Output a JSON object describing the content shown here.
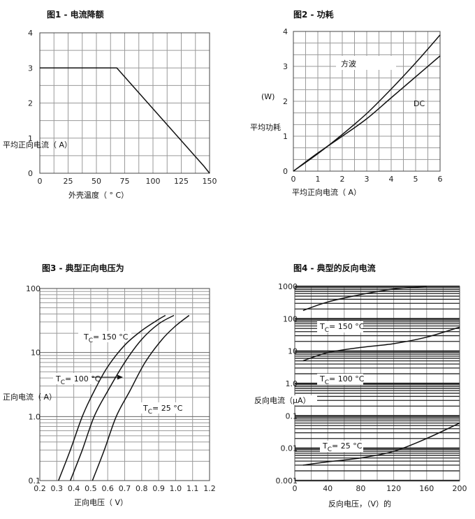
{
  "chart_data": [
    {
      "id": "fig1",
      "type": "line",
      "title": "图1 - 电流降额",
      "xlabel": "外壳温度（ ° C）",
      "ylabel": "平均正向电流（ A）",
      "xlim": [
        0,
        150
      ],
      "ylim": [
        0,
        4
      ],
      "xticks": [
        "0",
        "25",
        "50",
        "75",
        "100",
        "125",
        "150"
      ],
      "yticks": [
        "0",
        "1",
        "2",
        "3",
        "4"
      ],
      "grid": true,
      "series": [
        {
          "x": [
            0,
            68,
            145,
            150
          ],
          "y": [
            3,
            3,
            0.2,
            0
          ]
        }
      ]
    },
    {
      "id": "fig2",
      "type": "line",
      "title": "图2 - 功耗",
      "xlabel": "平均正向电流（ A）",
      "ylabel": "平均功耗",
      "ylabel_unit": "(W)",
      "xlim": [
        0,
        6
      ],
      "ylim": [
        0,
        4
      ],
      "xticks": [
        "0",
        "1",
        "2",
        "3",
        "4",
        "5",
        "6"
      ],
      "yticks": [
        "0",
        "1",
        "2",
        "3",
        "4"
      ],
      "grid": true,
      "series": [
        {
          "name": "方波",
          "x": [
            0,
            1,
            2,
            3,
            4,
            5,
            6
          ],
          "y": [
            0,
            0.5,
            1.05,
            1.65,
            2.35,
            3.1,
            3.9
          ]
        },
        {
          "name": "DC",
          "x": [
            0,
            1,
            2,
            3,
            4,
            5,
            6
          ],
          "y": [
            0,
            0.52,
            1.0,
            1.5,
            2.1,
            2.7,
            3.3
          ]
        }
      ]
    },
    {
      "id": "fig3",
      "type": "line",
      "title": "图3 - 典型正向电压为",
      "xlabel": "正向电压（ V）",
      "ylabel": "正向电流（ A）",
      "xlim": [
        0.2,
        1.2
      ],
      "ylim": [
        0.1,
        100
      ],
      "yscale": "log",
      "xticks": [
        "0.2",
        "0.3",
        "0.4",
        "0.5",
        "0.6",
        "0.7",
        "0.8",
        "0.9",
        "1.0",
        "1.1",
        "1.2"
      ],
      "yticks": [
        "0.1",
        "1.0",
        "10",
        "100"
      ],
      "grid": true,
      "series": [
        {
          "name": "TC= 150 °C",
          "x": [
            0.31,
            0.38,
            0.45,
            0.52,
            0.6,
            0.7,
            0.8,
            0.9,
            0.94
          ],
          "y": [
            0.1,
            0.3,
            1,
            2.5,
            6,
            13,
            22,
            33,
            38
          ]
        },
        {
          "name": "TC= 100 °C",
          "x": [
            0.38,
            0.45,
            0.52,
            0.6,
            0.7,
            0.8,
            0.9,
            0.99
          ],
          "y": [
            0.1,
            0.3,
            1,
            2.5,
            7,
            16,
            28,
            38
          ]
        },
        {
          "name": "TC= 25 °C",
          "x": [
            0.51,
            0.58,
            0.65,
            0.73,
            0.82,
            0.92,
            1.0,
            1.08
          ],
          "y": [
            0.1,
            0.3,
            1,
            2.5,
            7,
            16,
            26,
            38
          ]
        }
      ]
    },
    {
      "id": "fig4",
      "type": "line",
      "title": "图4 - 典型的反向电流",
      "xlabel": "反向电压，（V）的",
      "ylabel": "反向电流（μA）",
      "xlim": [
        0,
        200
      ],
      "ylim": [
        0.001,
        1000
      ],
      "yscale": "log",
      "xticks": [
        "0",
        "40",
        "80",
        "120",
        "160",
        "200"
      ],
      "yticks": [
        "0.001",
        "0.01",
        "0.1",
        "1.0",
        "10",
        "100",
        "1000"
      ],
      "grid": true,
      "series": [
        {
          "name": "TC= 150 °C",
          "x": [
            10,
            40,
            80,
            120,
            160
          ],
          "y": [
            180,
            330,
            560,
            830,
            1000
          ]
        },
        {
          "name": "TC= 100 °C",
          "x": [
            10,
            40,
            80,
            120,
            160,
            200
          ],
          "y": [
            5,
            9,
            13,
            17,
            27,
            55
          ]
        },
        {
          "name": "TC= 25 °C",
          "x": [
            10,
            40,
            80,
            120,
            160,
            200
          ],
          "y": [
            0.003,
            0.0038,
            0.005,
            0.008,
            0.02,
            0.06
          ]
        }
      ]
    }
  ]
}
